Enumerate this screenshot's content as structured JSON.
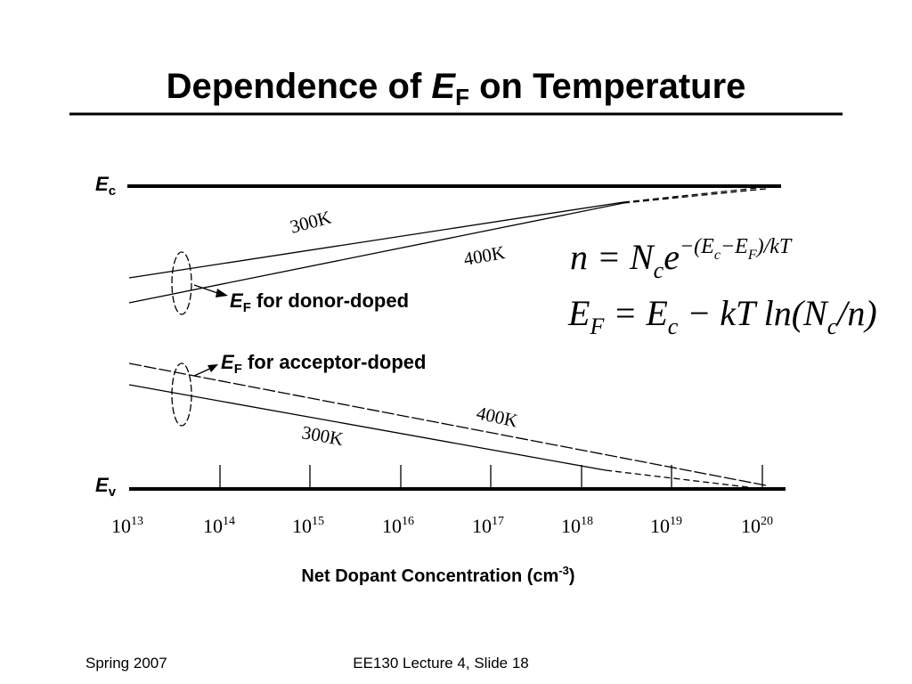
{
  "title": {
    "before": "Dependence of ",
    "symbol": "E",
    "sub": "F",
    "after": " on Temperature"
  },
  "diagram": {
    "ec_label": {
      "symbol": "E",
      "sub": "c"
    },
    "ev_label": {
      "symbol": "E",
      "sub": "v"
    },
    "line_labels": [
      "300K",
      "400K",
      "400K",
      "300K"
    ],
    "donor_label": {
      "symbol": "E",
      "sub": "F",
      "text": " for donor-doped"
    },
    "acceptor_label": {
      "symbol": "E",
      "sub": "F",
      "text": " for acceptor-doped"
    },
    "x_ticks": [
      {
        "base": "10",
        "exp": "13"
      },
      {
        "base": "10",
        "exp": "14"
      },
      {
        "base": "10",
        "exp": "15"
      },
      {
        "base": "10",
        "exp": "16"
      },
      {
        "base": "10",
        "exp": "17"
      },
      {
        "base": "10",
        "exp": "18"
      },
      {
        "base": "10",
        "exp": "19"
      },
      {
        "base": "10",
        "exp": "20"
      }
    ],
    "x_axis_label": {
      "text": "Net Dopant Concentration (cm",
      "sup": "-3",
      "close": ")"
    }
  },
  "equations": [
    [
      {
        "t": "n = N",
        "pos": "base"
      },
      {
        "t": "c",
        "pos": "sub"
      },
      {
        "t": "e",
        "pos": "base"
      },
      {
        "t": "−(E",
        "pos": "sup"
      },
      {
        "t": "c",
        "pos": "supsub"
      },
      {
        "t": "−E",
        "pos": "sup"
      },
      {
        "t": "F",
        "pos": "supsub"
      },
      {
        "t": ")/kT",
        "pos": "sup"
      }
    ],
    [
      {
        "t": "E",
        "pos": "base"
      },
      {
        "t": "F",
        "pos": "sub"
      },
      {
        "t": " = E",
        "pos": "base"
      },
      {
        "t": "c",
        "pos": "sub"
      },
      {
        "t": " − kT ln(N",
        "pos": "base"
      },
      {
        "t": "c",
        "pos": "sub"
      },
      {
        "t": "/n)",
        "pos": "base"
      }
    ]
  ],
  "footer": {
    "left": "Spring 2007",
    "center": "EE130 Lecture 4, Slide 18"
  }
}
